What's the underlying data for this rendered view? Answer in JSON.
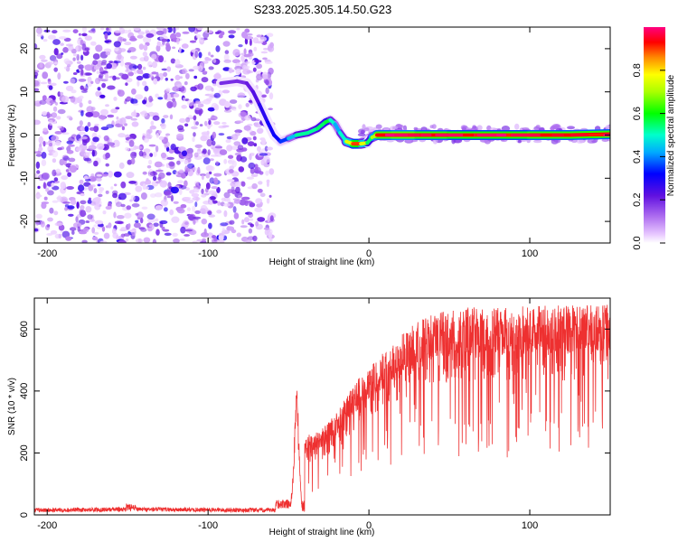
{
  "chart_data": [
    {
      "type": "heatmap",
      "title": "S233.2025.305.14.50.G23",
      "xlabel": "Height of straight line (km)",
      "ylabel": "Frequency (Hz)",
      "xlim": [
        -208,
        150
      ],
      "ylim": [
        -25,
        25
      ],
      "x_ticks": [
        -200,
        -100,
        0,
        100
      ],
      "x_tick_labels": [
        "-200",
        "-100",
        "0",
        "100"
      ],
      "y_ticks": [
        -20,
        -10,
        0,
        10,
        20
      ],
      "y_tick_labels": [
        "-20",
        "-10",
        "0",
        "10",
        "20"
      ],
      "noise_region_x": [
        -208,
        -60
      ],
      "ridge": {
        "x": [
          -92,
          -82,
          -76,
          -72,
          -68,
          -63,
          -59,
          -55,
          -50,
          -45,
          -38,
          -32,
          -27,
          -24,
          -21,
          -18,
          -14,
          -10,
          -5,
          -1,
          2,
          5,
          15,
          30,
          50,
          75,
          100,
          125,
          150
        ],
        "freq": [
          12,
          12.5,
          12,
          10,
          7,
          3,
          0,
          -1.5,
          -0.8,
          0,
          0.5,
          1.5,
          3,
          3.5,
          2.5,
          0.5,
          -1.5,
          -2,
          -2,
          -1.8,
          -0.5,
          0,
          0,
          0,
          0,
          0,
          0,
          0,
          0.2
        ],
        "amplitude": [
          0.2,
          0.18,
          0.2,
          0.22,
          0.25,
          0.3,
          0.3,
          0.32,
          0.38,
          0.5,
          0.55,
          0.5,
          0.6,
          0.55,
          0.45,
          0.4,
          0.6,
          0.9,
          0.9,
          0.6,
          0.5,
          0.92,
          0.95,
          0.95,
          0.9,
          0.92,
          0.9,
          0.95,
          0.9
        ]
      },
      "colorbar": {
        "label": "Normalized spectral amplitude",
        "range": [
          0,
          1
        ],
        "ticks": [
          0.0,
          0.2,
          0.4,
          0.6,
          0.8
        ],
        "tick_labels": [
          "0.0",
          "0.2",
          "0.4",
          "0.6",
          "0.8"
        ]
      }
    },
    {
      "type": "line",
      "xlabel": "Height of straight line (km)",
      "ylabel": "SNR (10 * v/v)",
      "xlim": [
        -208,
        150
      ],
      "ylim": [
        0,
        700
      ],
      "x_ticks": [
        -200,
        -100,
        0,
        100
      ],
      "x_tick_labels": [
        "-200",
        "-100",
        "0",
        "100"
      ],
      "y_ticks": [
        0,
        200,
        400,
        600
      ],
      "y_tick_labels": [
        "0",
        "200",
        "400",
        "600"
      ],
      "series": [
        {
          "name": "SNR",
          "color": "#ee3030",
          "baseline_x": [
            -208,
            -150,
            -60
          ],
          "baseline_y": [
            15,
            18,
            15
          ],
          "spike": {
            "x": -45,
            "y": 400
          },
          "envelope_x": [
            -40,
            -30,
            -20,
            -10,
            0,
            10,
            20,
            30,
            40,
            60,
            80,
            100,
            120,
            150
          ],
          "envelope_y": [
            230,
            250,
            300,
            380,
            440,
            480,
            530,
            570,
            590,
            610,
            610,
            615,
            615,
            620
          ]
        }
      ]
    }
  ]
}
